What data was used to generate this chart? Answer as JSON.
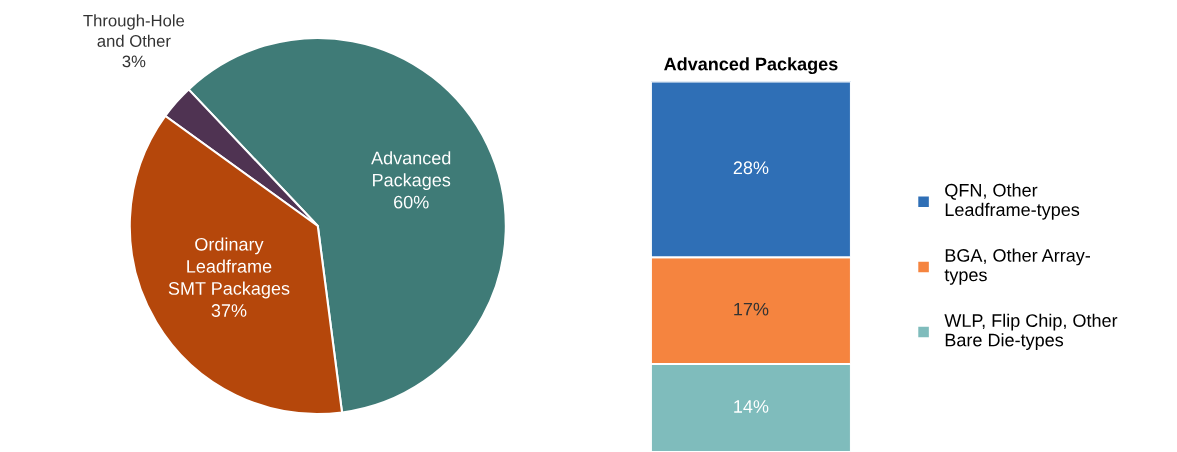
{
  "chart_data": [
    {
      "type": "pie",
      "categories": [
        "Advanced\nPackages",
        "Through-Hole\nand Other",
        "Ordinary\nLeadframe\nSMT Packages"
      ],
      "values": [
        60,
        3,
        37
      ],
      "colors": [
        "#3f7b77",
        "#4f3352",
        "#b5470b"
      ],
      "value_labels": [
        "60%",
        "3%",
        "37%"
      ]
    },
    {
      "type": "bar",
      "title": "Advanced Packages",
      "stacked": true,
      "categories": [
        null
      ],
      "legend": "right",
      "series": [
        {
          "name": "WLP, Flip Chip, Other\nBare Die-types",
          "color": "#7fbcbc",
          "values": [
            14
          ],
          "value_labels": [
            "14%"
          ]
        },
        {
          "name": "BGA, Other Array-\ntypes",
          "color": "#f5843f",
          "values": [
            17
          ],
          "value_labels": [
            "17%"
          ]
        },
        {
          "name": "QFN, Other\nLeadframe-types",
          "color": "#2f6fb6",
          "values": [
            28
          ],
          "value_labels": [
            "28%"
          ]
        }
      ]
    }
  ]
}
